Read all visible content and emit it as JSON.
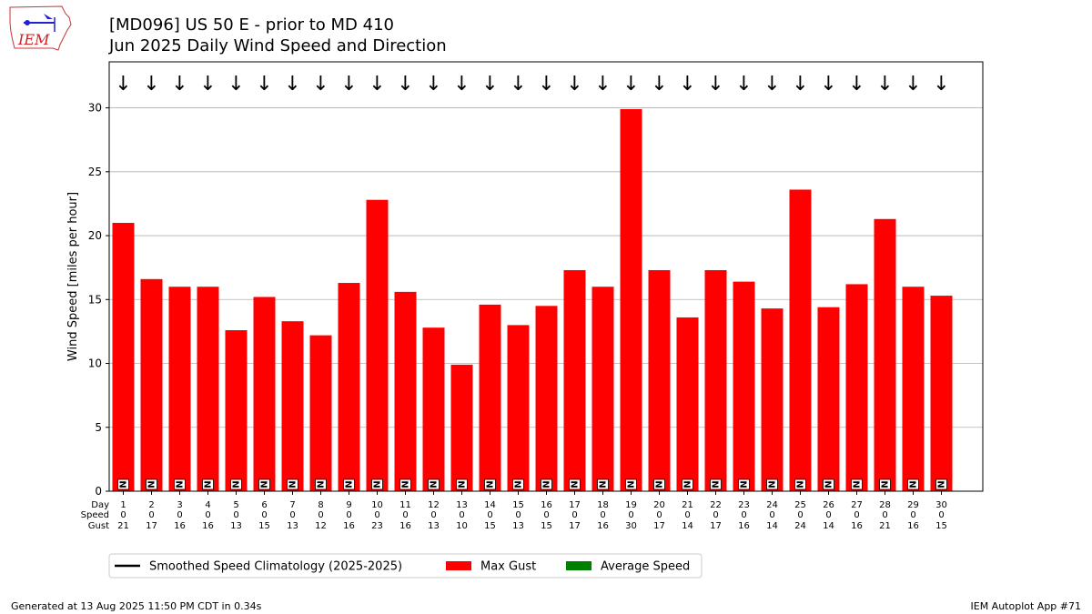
{
  "title_line1": "[MD096] US 50 E - prior to MD 410",
  "title_line2": "Jun 2025 Daily Wind Speed and Direction",
  "logo_text": "IEM",
  "footer_left": "Generated at 13 Aug 2025 11:50 PM CDT in 0.34s",
  "footer_right": "IEM Autoplot App #71",
  "colors": {
    "gust": "#ff0000",
    "average": "#008000",
    "climo": "#000000",
    "grid": "#b0b0b0"
  },
  "chart_data": {
    "type": "bar",
    "ylabel": "Wind Speed [miles per hour]",
    "ylim": [
      0,
      33.6
    ],
    "yticks": [
      0,
      5,
      10,
      15,
      20,
      25,
      30
    ],
    "grid": true,
    "row_labels": [
      "Day",
      "Speed",
      "Gust"
    ],
    "days": [
      1,
      2,
      3,
      4,
      5,
      6,
      7,
      8,
      9,
      10,
      11,
      12,
      13,
      14,
      15,
      16,
      17,
      18,
      19,
      20,
      21,
      22,
      23,
      24,
      25,
      26,
      27,
      28,
      29,
      30
    ],
    "speed_labels": [
      0,
      0,
      0,
      0,
      0,
      0,
      0,
      0,
      0,
      0,
      0,
      0,
      0,
      0,
      0,
      0,
      0,
      0,
      0,
      0,
      0,
      0,
      0,
      0,
      0,
      0,
      0,
      0,
      0,
      0
    ],
    "gust_labels": [
      21,
      17,
      16,
      16,
      13,
      15,
      13,
      12,
      16,
      23,
      16,
      13,
      10,
      15,
      13,
      15,
      17,
      16,
      30,
      17,
      14,
      17,
      16,
      14,
      24,
      14,
      16,
      21,
      16,
      15
    ],
    "series": [
      {
        "name": "Max Gust",
        "values": [
          21.0,
          16.6,
          16.0,
          16.0,
          12.6,
          15.2,
          13.3,
          12.2,
          16.3,
          22.8,
          15.6,
          12.8,
          9.9,
          14.6,
          13.0,
          14.5,
          17.3,
          16.0,
          29.9,
          17.3,
          13.6,
          17.3,
          16.4,
          14.3,
          23.6,
          14.4,
          16.2,
          21.3,
          16.0,
          15.3
        ]
      },
      {
        "name": "Average Speed",
        "values": [
          0,
          0,
          0,
          0,
          0,
          0,
          0,
          0,
          0,
          0,
          0,
          0,
          0,
          0,
          0,
          0,
          0,
          0,
          0,
          0,
          0,
          0,
          0,
          0,
          0,
          0,
          0,
          0,
          0,
          0
        ]
      }
    ],
    "direction_text": "N",
    "direction_arrow": "↓",
    "legend": [
      {
        "label": "Smoothed Speed Climatology (2025-2025)",
        "kind": "line"
      },
      {
        "label": "Max Gust",
        "kind": "gust"
      },
      {
        "label": "Average Speed",
        "kind": "average"
      }
    ],
    "legend_position": "bottom"
  }
}
